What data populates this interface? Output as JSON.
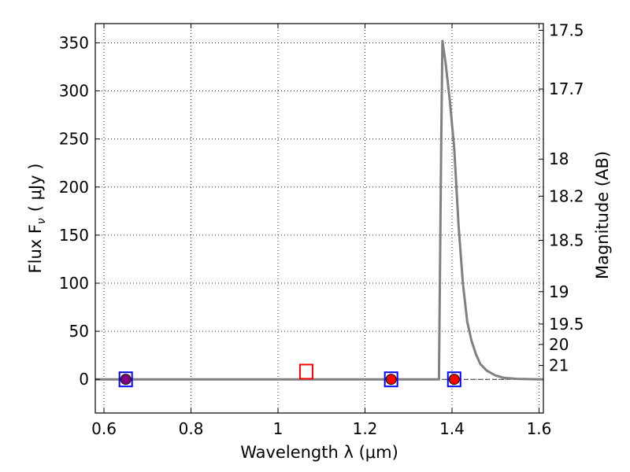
{
  "chart_data": {
    "type": "line",
    "xlabel": "Wavelength  λ (μm)",
    "ylabel": "Flux  F",
    "ylabel_subscript": "ν",
    "ylabel_unit": "( μJy )",
    "y2label": "Magnitude (AB)",
    "xlim": [
      0.58,
      1.61
    ],
    "ylim": [
      -35,
      370
    ],
    "grid": true,
    "xticks": [
      {
        "value": 0.6,
        "label": "0.6"
      },
      {
        "value": 0.8,
        "label": "0.8"
      },
      {
        "value": 1.0,
        "label": "1"
      },
      {
        "value": 1.2,
        "label": "1.2"
      },
      {
        "value": 1.4,
        "label": "1.4"
      },
      {
        "value": 1.6,
        "label": "1.6"
      }
    ],
    "yticks": [
      {
        "value": 0,
        "label": "0"
      },
      {
        "value": 50,
        "label": "50"
      },
      {
        "value": 100,
        "label": "100"
      },
      {
        "value": 150,
        "label": "150"
      },
      {
        "value": 200,
        "label": "200"
      },
      {
        "value": 250,
        "label": "250"
      },
      {
        "value": 300,
        "label": "300"
      },
      {
        "value": 350,
        "label": "350"
      }
    ],
    "y2ticks": [
      {
        "value": 17.5,
        "label": "17.5"
      },
      {
        "value": 17.7,
        "label": "17.7"
      },
      {
        "value": 18,
        "label": "18"
      },
      {
        "value": 18.2,
        "label": "18.2"
      },
      {
        "value": 18.5,
        "label": "18.5"
      },
      {
        "value": 19,
        "label": "19"
      },
      {
        "value": 19.5,
        "label": "19.5"
      },
      {
        "value": 20,
        "label": "20"
      },
      {
        "value": 21,
        "label": "21"
      }
    ],
    "series": [
      {
        "color": "#808080",
        "x": [
          0.58,
          1.37,
          1.375,
          1.378,
          1.385,
          1.395,
          1.405,
          1.415,
          1.425,
          1.435,
          1.445,
          1.455,
          1.465,
          1.48,
          1.5,
          1.52,
          1.55,
          1.58,
          1.61
        ],
        "y": [
          0,
          0,
          240,
          352,
          330,
          290,
          240,
          160,
          100,
          60,
          40,
          26,
          16,
          9,
          4,
          1.5,
          0.5,
          0.2,
          0
        ]
      },
      {
        "marker": "open-square",
        "color": "#0000ff",
        "x": [
          0.65,
          1.26,
          1.405
        ],
        "y": [
          0,
          0,
          0
        ]
      },
      {
        "marker": "open-square",
        "color": "#ff0000",
        "x": [
          1.065
        ],
        "y": [
          8
        ]
      },
      {
        "marker": "filled-circle",
        "color": "#ff0000",
        "x": [
          1.26,
          1.405
        ],
        "y": [
          0,
          0
        ]
      },
      {
        "marker": "filled-circle",
        "color": "#800080",
        "x": [
          0.65
        ],
        "y": [
          0
        ]
      }
    ]
  }
}
